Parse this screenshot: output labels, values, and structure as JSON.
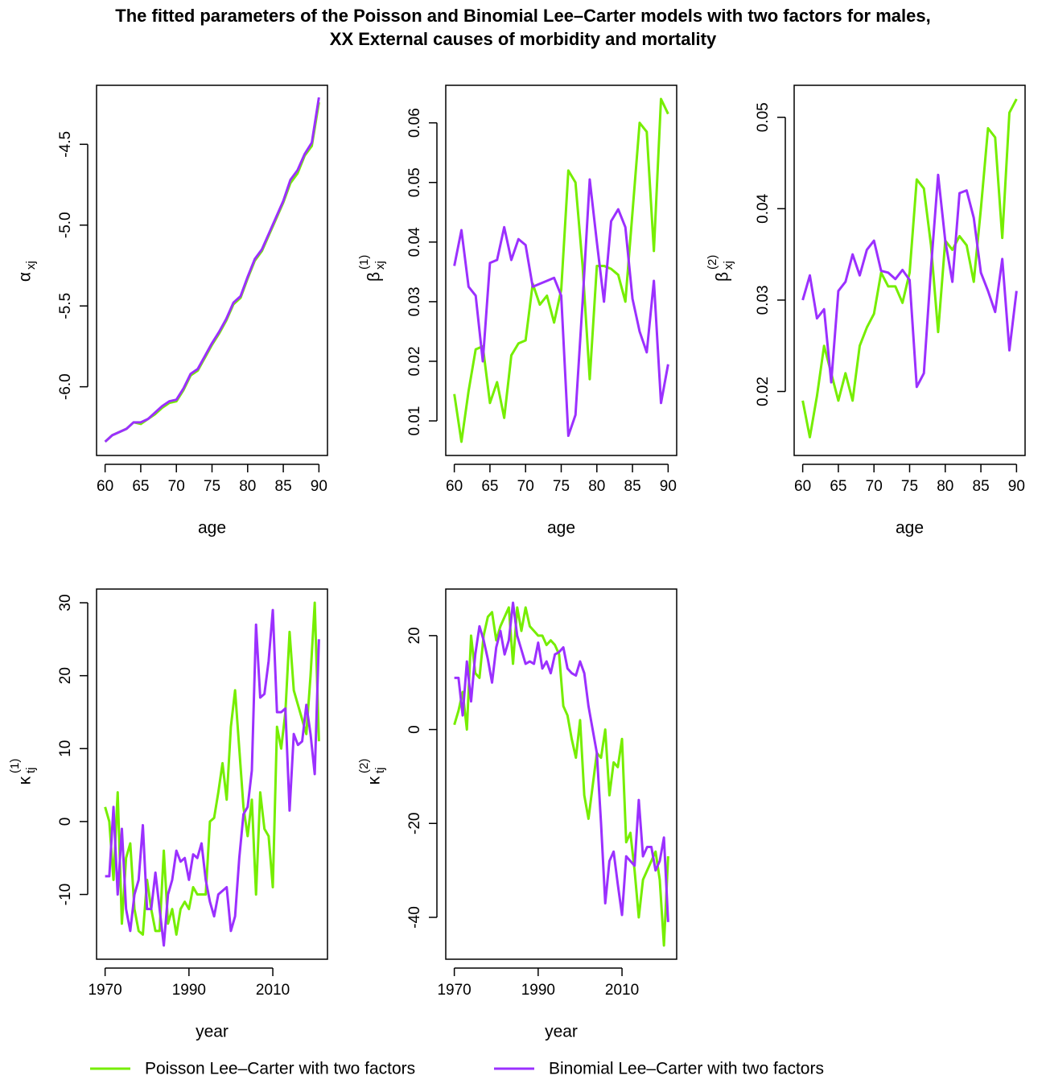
{
  "title": [
    "The fitted parameters of the Poisson and Binomial Lee–Carter models with two factors for males,",
    "XX External causes of morbidity and mortality"
  ],
  "chart_data": [
    {
      "type": "line",
      "xlabel": "age",
      "ylabel": "α",
      "ylabel_sub": "xj",
      "x": [
        60,
        61,
        62,
        63,
        64,
        65,
        66,
        67,
        68,
        69,
        70,
        71,
        72,
        73,
        74,
        75,
        76,
        77,
        78,
        79,
        80,
        81,
        82,
        83,
        84,
        85,
        86,
        87,
        88,
        89,
        90
      ],
      "xlim": [
        58.8,
        91.2
      ],
      "xticks": [
        60,
        65,
        70,
        75,
        80,
        85,
        90
      ],
      "ylim": [
        -6.425,
        -4.135
      ],
      "yticks": [
        {
          "value": -6,
          "label": "-6.0"
        },
        -5.5,
        {
          "value": -5,
          "label": "-5.0"
        },
        -4.5
      ],
      "series": [
        {
          "name": "Poisson Lee–Carter with two factors",
          "color": "#76ee00",
          "values": [
            -6.34,
            -6.3,
            -6.28,
            -6.26,
            -6.22,
            -6.23,
            -6.2,
            -6.17,
            -6.13,
            -6.1,
            -6.09,
            -6.02,
            -5.93,
            -5.9,
            -5.82,
            -5.74,
            -5.67,
            -5.59,
            -5.49,
            -5.45,
            -5.33,
            -5.22,
            -5.16,
            -5.06,
            -4.96,
            -4.86,
            -4.74,
            -4.68,
            -4.57,
            -4.51,
            -4.24
          ]
        },
        {
          "name": "Binomial Lee–Carter with two factors",
          "color": "#9b30ff",
          "values": [
            -6.34,
            -6.3,
            -6.28,
            -6.26,
            -6.22,
            -6.22,
            -6.2,
            -6.16,
            -6.12,
            -6.09,
            -6.08,
            -6.01,
            -5.92,
            -5.89,
            -5.81,
            -5.73,
            -5.66,
            -5.58,
            -5.48,
            -5.44,
            -5.32,
            -5.21,
            -5.15,
            -5.05,
            -4.95,
            -4.85,
            -4.72,
            -4.66,
            -4.56,
            -4.49,
            -4.21
          ]
        }
      ]
    },
    {
      "type": "line",
      "xlabel": "age",
      "ylabel": "β",
      "ylabel_sub": "xj",
      "ylabel_sup": "(1)",
      "x": [
        60,
        61,
        62,
        63,
        64,
        65,
        66,
        67,
        68,
        69,
        70,
        71,
        72,
        73,
        74,
        75,
        76,
        77,
        78,
        79,
        80,
        81,
        82,
        83,
        84,
        85,
        86,
        87,
        88,
        89,
        90
      ],
      "xlim": [
        58.8,
        91.2
      ],
      "xticks": [
        60,
        65,
        70,
        75,
        80,
        85,
        90
      ],
      "ylim": [
        0.0042,
        0.0663
      ],
      "yticks": [
        0.01,
        0.02,
        0.03,
        0.04,
        0.05,
        0.06
      ],
      "series": [
        {
          "color": "#76ee00",
          "values": [
            0.0145,
            0.0065,
            0.015,
            0.022,
            0.0225,
            0.013,
            0.0165,
            0.0105,
            0.021,
            0.023,
            0.0235,
            0.033,
            0.0295,
            0.031,
            0.0265,
            0.032,
            0.052,
            0.05,
            0.036,
            0.017,
            0.036,
            0.036,
            0.0355,
            0.0345,
            0.03,
            0.045,
            0.06,
            0.0585,
            0.0385,
            0.064,
            0.0615
          ]
        },
        {
          "color": "#9b30ff",
          "values": [
            0.036,
            0.042,
            0.0325,
            0.031,
            0.02,
            0.0365,
            0.037,
            0.0425,
            0.037,
            0.0405,
            0.0395,
            0.0325,
            0.033,
            0.0335,
            0.034,
            0.031,
            0.0075,
            0.011,
            0.03,
            0.0505,
            0.04,
            0.03,
            0.0435,
            0.0455,
            0.0425,
            0.0305,
            0.025,
            0.0215,
            0.0335,
            0.013,
            0.0195
          ]
        }
      ]
    },
    {
      "type": "line",
      "xlabel": "age",
      "ylabel": "β",
      "ylabel_sub": "xj",
      "ylabel_sup": "(2)",
      "x": [
        60,
        61,
        62,
        63,
        64,
        65,
        66,
        67,
        68,
        69,
        70,
        71,
        72,
        73,
        74,
        75,
        76,
        77,
        78,
        79,
        80,
        81,
        82,
        83,
        84,
        85,
        86,
        87,
        88,
        89,
        90
      ],
      "xlim": [
        58.8,
        91.2
      ],
      "xticks": [
        60,
        65,
        70,
        75,
        80,
        85,
        90
      ],
      "ylim": [
        0.013,
        0.0535
      ],
      "yticks": [
        0.02,
        0.03,
        0.04,
        0.05
      ],
      "series": [
        {
          "color": "#76ee00",
          "values": [
            0.019,
            0.015,
            0.0195,
            0.025,
            0.022,
            0.019,
            0.022,
            0.019,
            0.025,
            0.027,
            0.0285,
            0.033,
            0.0315,
            0.0315,
            0.0297,
            0.033,
            0.0432,
            0.0422,
            0.036,
            0.0265,
            0.0365,
            0.0355,
            0.037,
            0.036,
            0.032,
            0.04,
            0.0488,
            0.0478,
            0.0368,
            0.0505,
            0.052
          ]
        },
        {
          "color": "#9b30ff",
          "values": [
            0.03,
            0.0327,
            0.028,
            0.029,
            0.021,
            0.031,
            0.032,
            0.035,
            0.0327,
            0.0355,
            0.0365,
            0.0332,
            0.033,
            0.0323,
            0.0333,
            0.0322,
            0.0205,
            0.022,
            0.0335,
            0.0437,
            0.0365,
            0.032,
            0.0417,
            0.042,
            0.039,
            0.033,
            0.031,
            0.0287,
            0.0345,
            0.0245,
            0.031
          ]
        }
      ]
    },
    {
      "type": "line",
      "xlabel": "year",
      "ylabel": "κ",
      "ylabel_sub": "tj",
      "ylabel_sup": "(1)",
      "x": [
        1970,
        1971,
        1972,
        1973,
        1974,
        1975,
        1976,
        1977,
        1978,
        1979,
        1980,
        1981,
        1982,
        1983,
        1984,
        1985,
        1986,
        1987,
        1988,
        1989,
        1990,
        1991,
        1992,
        1993,
        1994,
        1995,
        1996,
        1997,
        1998,
        1999,
        2000,
        2001,
        2002,
        2003,
        2004,
        2005,
        2006,
        2007,
        2008,
        2009,
        2010,
        2011,
        2012,
        2013,
        2014,
        2015,
        2016,
        2017,
        2018,
        2019,
        2020,
        2021
      ],
      "xlim": [
        1967.96,
        2023.04
      ],
      "xticks": [
        1970,
        1990,
        2010
      ],
      "ylim": [
        -18.88,
        31.88
      ],
      "yticks": [
        -10,
        0,
        10,
        20,
        30
      ],
      "series": [
        {
          "color": "#76ee00",
          "values": [
            2,
            0,
            -8,
            4,
            -14,
            -5,
            -3,
            -12,
            -15,
            -15.5,
            -8,
            -12,
            -15,
            -15,
            -4,
            -14,
            -12,
            -15.5,
            -12,
            -11,
            -12,
            -9,
            -10,
            -10,
            -10,
            0,
            0.5,
            4,
            8,
            3,
            13,
            18,
            10,
            2,
            -2,
            3,
            -10,
            4,
            -1,
            -2,
            -9,
            13,
            10,
            15,
            26,
            18,
            16,
            14,
            12,
            20,
            30,
            11
          ]
        },
        {
          "color": "#9b30ff",
          "values": [
            -7.5,
            -7.5,
            2,
            -10,
            -1,
            -12,
            -15,
            -10,
            -8,
            -0.5,
            -12,
            -12,
            -7,
            -12,
            -17,
            -10,
            -8,
            -4,
            -5.5,
            -5,
            -8,
            -4.5,
            -5,
            -3,
            -8,
            -11,
            -13,
            -10,
            -9.5,
            -9,
            -15,
            -13,
            -5,
            1,
            2,
            7,
            27,
            17,
            17.5,
            22,
            29,
            15,
            15,
            15.5,
            1.5,
            12,
            10.5,
            11,
            16,
            12,
            6.5,
            25
          ]
        }
      ]
    },
    {
      "type": "line",
      "xlabel": "year",
      "ylabel": "κ",
      "ylabel_sub": "tj",
      "ylabel_sup": "(2)",
      "x": [
        1970,
        1971,
        1972,
        1973,
        1974,
        1975,
        1976,
        1977,
        1978,
        1979,
        1980,
        1981,
        1982,
        1983,
        1984,
        1985,
        1986,
        1987,
        1988,
        1989,
        1990,
        1991,
        1992,
        1993,
        1994,
        1995,
        1996,
        1997,
        1998,
        1999,
        2000,
        2001,
        2002,
        2003,
        2004,
        2005,
        2006,
        2007,
        2008,
        2009,
        2010,
        2011,
        2012,
        2013,
        2014,
        2015,
        2016,
        2017,
        2018,
        2019,
        2020,
        2021
      ],
      "xlim": [
        1967.96,
        2023.04
      ],
      "xticks": [
        1970,
        1990,
        2010
      ],
      "ylim": [
        -48.92,
        29.92
      ],
      "yticks": [
        -40,
        -20,
        0,
        20
      ],
      "series": [
        {
          "color": "#76ee00",
          "values": [
            1,
            4,
            8,
            0,
            20,
            12,
            11,
            20,
            24,
            25,
            19,
            22,
            24,
            26,
            14,
            26,
            21,
            26,
            22,
            21,
            20,
            20,
            18,
            19,
            18,
            16,
            5,
            3,
            -2,
            -6,
            2,
            -14,
            -19,
            -12,
            -5,
            -6,
            0,
            -14,
            -7,
            -8,
            -2,
            -24,
            -22,
            -30,
            -40,
            -32,
            -30,
            -28,
            -26,
            -32,
            -46,
            -27
          ]
        },
        {
          "color": "#9b30ff",
          "values": [
            11,
            11,
            3,
            14.5,
            6,
            16,
            22,
            19,
            15,
            10,
            17.5,
            21,
            16,
            19,
            27,
            20,
            17,
            14,
            14.5,
            14,
            18.5,
            13,
            14.5,
            12,
            16,
            16.5,
            17.5,
            13,
            12,
            11.5,
            14.5,
            12,
            5,
            0,
            -5,
            -20,
            -37,
            -28,
            -26,
            -33,
            -39.5,
            -27,
            -28,
            -29,
            -15,
            -27,
            -25,
            -25,
            -30,
            -28,
            -23,
            -41
          ]
        }
      ]
    }
  ]
}
